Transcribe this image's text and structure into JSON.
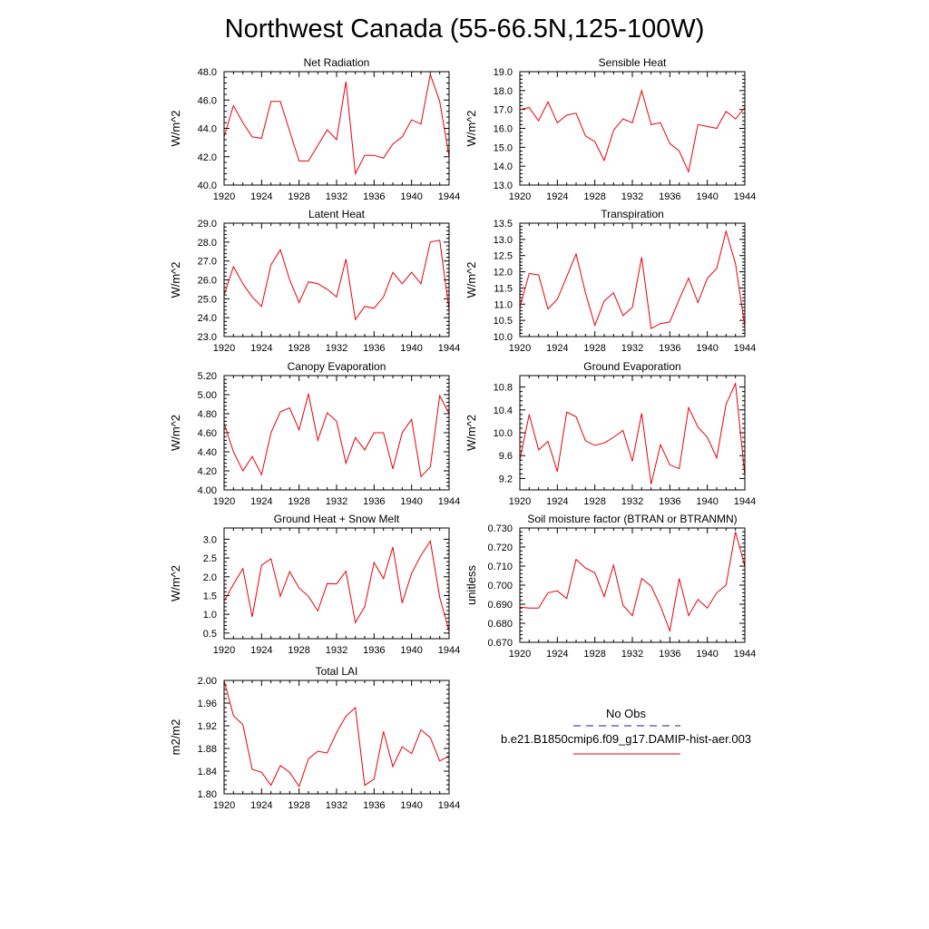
{
  "page_title": "Northwest Canada (55-66.5N,125-100W)",
  "legend": {
    "obs_label": "No Obs",
    "obs_color": "#1a1aa6",
    "model_label": "b.e21.B1850cmip6.f09_g17.DAMIP-hist-aer.003",
    "model_color": "#e8000b"
  },
  "chart_data": [
    {
      "type": "line",
      "title": "Net Radiation",
      "ylabel": "W/m^2",
      "xlim": [
        1920,
        1944
      ],
      "ylim": [
        40.0,
        48.0
      ],
      "xticks": [
        1920,
        1924,
        1928,
        1932,
        1936,
        1940,
        1944
      ],
      "yticks": [
        "40.0",
        "42.0",
        "44.0",
        "46.0",
        "48.0"
      ],
      "x": [
        1920,
        1921,
        1922,
        1923,
        1924,
        1925,
        1926,
        1927,
        1928,
        1929,
        1930,
        1931,
        1932,
        1933,
        1934,
        1935,
        1936,
        1937,
        1938,
        1939,
        1940,
        1941,
        1942,
        1943,
        1944
      ],
      "series": [
        {
          "values": [
            43.4,
            45.6,
            44.4,
            43.4,
            43.3,
            45.9,
            45.9,
            43.8,
            41.7,
            41.7,
            42.8,
            43.9,
            43.2,
            47.3,
            40.8,
            42.1,
            42.1,
            41.9,
            42.9,
            43.4,
            44.6,
            44.3,
            47.8,
            45.9,
            42.0
          ]
        }
      ]
    },
    {
      "type": "line",
      "title": "Sensible Heat",
      "ylabel": "W/m^2",
      "xlim": [
        1920,
        1944
      ],
      "ylim": [
        13.0,
        19.0
      ],
      "xticks": [
        1920,
        1924,
        1928,
        1932,
        1936,
        1940,
        1944
      ],
      "yticks": [
        "13.0",
        "14.0",
        "15.0",
        "16.0",
        "17.0",
        "18.0",
        "19.0"
      ],
      "x": [
        1920,
        1921,
        1922,
        1923,
        1924,
        1925,
        1926,
        1927,
        1928,
        1929,
        1930,
        1931,
        1932,
        1933,
        1934,
        1935,
        1936,
        1937,
        1938,
        1939,
        1940,
        1941,
        1942,
        1943,
        1944
      ],
      "series": [
        {
          "values": [
            17.0,
            17.1,
            16.4,
            17.4,
            16.3,
            16.7,
            16.8,
            15.6,
            15.3,
            14.3,
            15.9,
            16.5,
            16.3,
            18.0,
            16.2,
            16.3,
            15.2,
            14.8,
            13.7,
            16.2,
            16.1,
            16.0,
            16.9,
            16.5,
            17.1
          ]
        }
      ]
    },
    {
      "type": "line",
      "title": "Latent Heat",
      "ylabel": "W/m^2",
      "xlim": [
        1920,
        1944
      ],
      "ylim": [
        23.0,
        29.0
      ],
      "xticks": [
        1920,
        1924,
        1928,
        1932,
        1936,
        1940,
        1944
      ],
      "yticks": [
        "23.0",
        "24.0",
        "25.0",
        "26.0",
        "27.0",
        "28.0",
        "29.0"
      ],
      "x": [
        1920,
        1921,
        1922,
        1923,
        1924,
        1925,
        1926,
        1927,
        1928,
        1929,
        1930,
        1931,
        1932,
        1933,
        1934,
        1935,
        1936,
        1937,
        1938,
        1939,
        1940,
        1941,
        1942,
        1943,
        1944
      ],
      "series": [
        {
          "values": [
            25.2,
            26.7,
            25.8,
            25.1,
            24.6,
            26.8,
            27.6,
            26.0,
            24.8,
            25.9,
            25.8,
            25.5,
            25.1,
            27.1,
            23.9,
            24.6,
            24.5,
            25.1,
            26.4,
            25.8,
            26.4,
            25.8,
            28.0,
            28.1,
            24.4
          ]
        }
      ]
    },
    {
      "type": "line",
      "title": "Transpiration",
      "ylabel": "W/m^2",
      "xlim": [
        1920,
        1944
      ],
      "ylim": [
        10.0,
        13.5
      ],
      "xticks": [
        1920,
        1924,
        1928,
        1932,
        1936,
        1940,
        1944
      ],
      "yticks": [
        "10.0",
        "10.5",
        "11.0",
        "11.5",
        "12.0",
        "12.5",
        "13.0",
        "13.5"
      ],
      "x": [
        1920,
        1921,
        1922,
        1923,
        1924,
        1925,
        1926,
        1927,
        1928,
        1929,
        1930,
        1931,
        1932,
        1933,
        1934,
        1935,
        1936,
        1937,
        1938,
        1939,
        1940,
        1941,
        1942,
        1943,
        1944
      ],
      "series": [
        {
          "values": [
            10.9,
            11.95,
            11.9,
            10.85,
            11.15,
            11.85,
            12.55,
            11.35,
            10.35,
            11.1,
            11.35,
            10.65,
            10.9,
            12.45,
            10.25,
            10.4,
            10.45,
            11.15,
            11.8,
            11.05,
            11.8,
            12.1,
            13.25,
            12.25,
            10.3
          ]
        }
      ]
    },
    {
      "type": "line",
      "title": "Canopy Evaporation",
      "ylabel": "W/m^2",
      "xlim": [
        1920,
        1944
      ],
      "ylim": [
        4.0,
        5.2
      ],
      "xticks": [
        1920,
        1924,
        1928,
        1932,
        1936,
        1940,
        1944
      ],
      "yticks": [
        "4.00",
        "4.20",
        "4.40",
        "4.60",
        "4.80",
        "5.00",
        "5.20"
      ],
      "x": [
        1920,
        1921,
        1922,
        1923,
        1924,
        1925,
        1926,
        1927,
        1928,
        1929,
        1930,
        1931,
        1932,
        1933,
        1934,
        1935,
        1936,
        1937,
        1938,
        1939,
        1940,
        1941,
        1942,
        1943,
        1944
      ],
      "series": [
        {
          "values": [
            4.7,
            4.4,
            4.2,
            4.35,
            4.16,
            4.6,
            4.82,
            4.86,
            4.63,
            5.01,
            4.52,
            4.81,
            4.72,
            4.28,
            4.55,
            4.42,
            4.6,
            4.6,
            4.22,
            4.6,
            4.74,
            4.14,
            4.24,
            4.99,
            4.8
          ]
        }
      ]
    },
    {
      "type": "line",
      "title": "Ground Evaporation",
      "ylabel": "W/m^2",
      "xlim": [
        1920,
        1944
      ],
      "ylim": [
        9.0,
        11.0
      ],
      "xticks": [
        1920,
        1924,
        1928,
        1932,
        1936,
        1940,
        1944
      ],
      "yticks": [
        "9.2",
        "9.6",
        "10.0",
        "10.4",
        "10.8"
      ],
      "x": [
        1920,
        1921,
        1922,
        1923,
        1924,
        1925,
        1926,
        1927,
        1928,
        1929,
        1930,
        1931,
        1932,
        1933,
        1934,
        1935,
        1936,
        1937,
        1938,
        1939,
        1940,
        1941,
        1942,
        1943,
        1944
      ],
      "series": [
        {
          "values": [
            9.52,
            10.32,
            9.7,
            9.85,
            9.32,
            10.36,
            10.28,
            9.86,
            9.78,
            9.82,
            9.92,
            10.04,
            9.5,
            10.34,
            9.1,
            9.79,
            9.44,
            9.37,
            10.44,
            10.1,
            9.92,
            9.56,
            10.5,
            10.86,
            9.25
          ]
        }
      ]
    },
    {
      "type": "line",
      "title": "Ground Heat + Snow Melt",
      "ylabel": "W/m^2",
      "xlim": [
        1920,
        1944
      ],
      "ylim": [
        0.35,
        3.3
      ],
      "xticks": [
        1920,
        1924,
        1928,
        1932,
        1936,
        1940,
        1944
      ],
      "yticks": [
        "0.5",
        "1.0",
        "1.5",
        "2.0",
        "2.5",
        "3.0"
      ],
      "x": [
        1920,
        1921,
        1922,
        1923,
        1924,
        1925,
        1926,
        1927,
        1928,
        1929,
        1930,
        1931,
        1932,
        1933,
        1934,
        1935,
        1936,
        1937,
        1938,
        1939,
        1940,
        1941,
        1942,
        1943,
        1944
      ],
      "series": [
        {
          "values": [
            1.35,
            1.8,
            2.22,
            0.93,
            2.31,
            2.48,
            1.48,
            2.14,
            1.7,
            1.48,
            1.09,
            1.82,
            1.81,
            2.15,
            0.78,
            1.2,
            2.38,
            1.95,
            2.79,
            1.3,
            2.09,
            2.57,
            2.95,
            1.45,
            0.55
          ]
        }
      ]
    },
    {
      "type": "line",
      "title": "Soil moisture factor (BTRAN or BTRANMN)",
      "ylabel": "unitless",
      "xlim": [
        1920,
        1944
      ],
      "ylim": [
        0.67,
        0.73
      ],
      "xticks": [
        1920,
        1924,
        1928,
        1932,
        1936,
        1940,
        1944
      ],
      "yticks": [
        "0.670",
        "0.680",
        "0.690",
        "0.700",
        "0.710",
        "0.720",
        "0.730"
      ],
      "x": [
        1920,
        1921,
        1922,
        1923,
        1924,
        1925,
        1926,
        1927,
        1928,
        1929,
        1930,
        1931,
        1932,
        1933,
        1934,
        1935,
        1936,
        1937,
        1938,
        1939,
        1940,
        1941,
        1942,
        1943,
        1944
      ],
      "series": [
        {
          "values": [
            0.6885,
            0.688,
            0.688,
            0.696,
            0.697,
            0.693,
            0.7135,
            0.709,
            0.7065,
            0.694,
            0.7105,
            0.6895,
            0.684,
            0.7035,
            0.6995,
            0.689,
            0.676,
            0.7035,
            0.684,
            0.6925,
            0.688,
            0.696,
            0.7,
            0.728,
            0.71
          ]
        }
      ]
    },
    {
      "type": "line",
      "title": "Total LAI",
      "ylabel": "m2/m2",
      "xlim": [
        1920,
        1944
      ],
      "ylim": [
        1.8,
        2.0
      ],
      "xticks": [
        1920,
        1924,
        1928,
        1932,
        1936,
        1940,
        1944
      ],
      "yticks": [
        "1.80",
        "1.84",
        "1.88",
        "1.92",
        "1.96",
        "2.00"
      ],
      "x": [
        1920,
        1921,
        1922,
        1923,
        1924,
        1925,
        1926,
        1927,
        1928,
        1929,
        1930,
        1931,
        1932,
        1933,
        1934,
        1935,
        1936,
        1937,
        1938,
        1939,
        1940,
        1941,
        1942,
        1943,
        1944
      ],
      "series": [
        {
          "values": [
            2.0,
            1.938,
            1.922,
            1.843,
            1.838,
            1.815,
            1.85,
            1.838,
            1.813,
            1.862,
            1.875,
            1.872,
            1.908,
            1.937,
            1.952,
            1.815,
            1.826,
            1.91,
            1.848,
            1.883,
            1.871,
            1.913,
            1.899,
            1.858,
            1.867
          ]
        }
      ]
    }
  ]
}
